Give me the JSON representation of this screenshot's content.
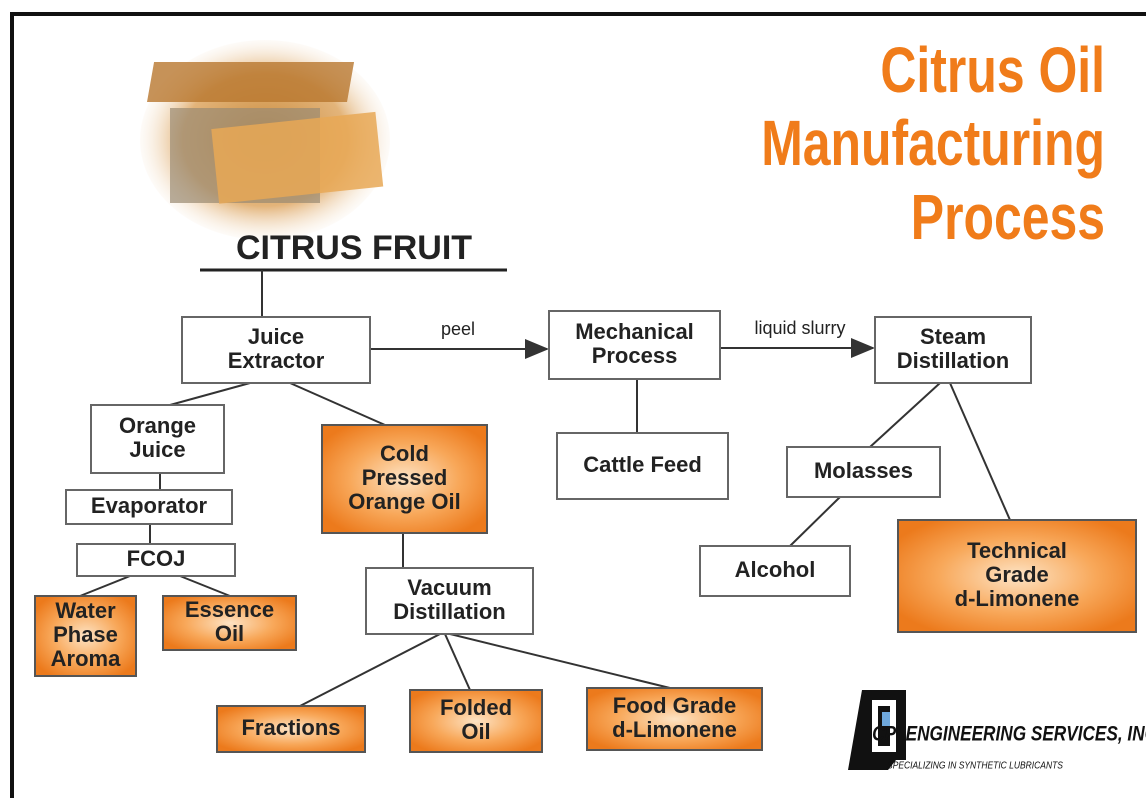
{
  "title": {
    "lines": [
      "Citrus Oil",
      "Manufacturing",
      "Process"
    ]
  },
  "source": "CITRUS FRUIT",
  "edge_labels": [
    "peel",
    "liquid slurry"
  ],
  "nodes": [
    {
      "lines": [
        "Juice",
        "Extractor"
      ]
    },
    {
      "lines": [
        "Mechanical",
        "Process"
      ]
    },
    {
      "lines": [
        "Steam",
        "Distillation"
      ]
    },
    {
      "lines": [
        "Orange",
        "Juice"
      ]
    },
    {
      "lines": [
        "Cold",
        "Pressed",
        "Orange Oil"
      ]
    },
    {
      "lines": [
        "Cattle Feed"
      ]
    },
    {
      "lines": [
        "Molasses"
      ]
    },
    {
      "lines": [
        "Evaporator"
      ]
    },
    {
      "lines": [
        "FCOJ"
      ]
    },
    {
      "lines": [
        "Alcohol"
      ]
    },
    {
      "lines": [
        "Technical",
        "Grade",
        "d-Limonene"
      ]
    },
    {
      "lines": [
        "Water",
        "Phase",
        "Aroma"
      ]
    },
    {
      "lines": [
        "Essence",
        "Oil"
      ]
    },
    {
      "lines": [
        "Vacuum",
        "Distillation"
      ]
    },
    {
      "lines": [
        "Fractions"
      ]
    },
    {
      "lines": [
        "Folded",
        "Oil"
      ]
    },
    {
      "lines": [
        "Food Grade",
        "d-Limonene"
      ]
    }
  ],
  "logo": {
    "name": "CPI ENGINEERING SERVICES, INC.",
    "tagline": "SPECIALIZING IN SYNTHETIC LUBRICANTS"
  }
}
